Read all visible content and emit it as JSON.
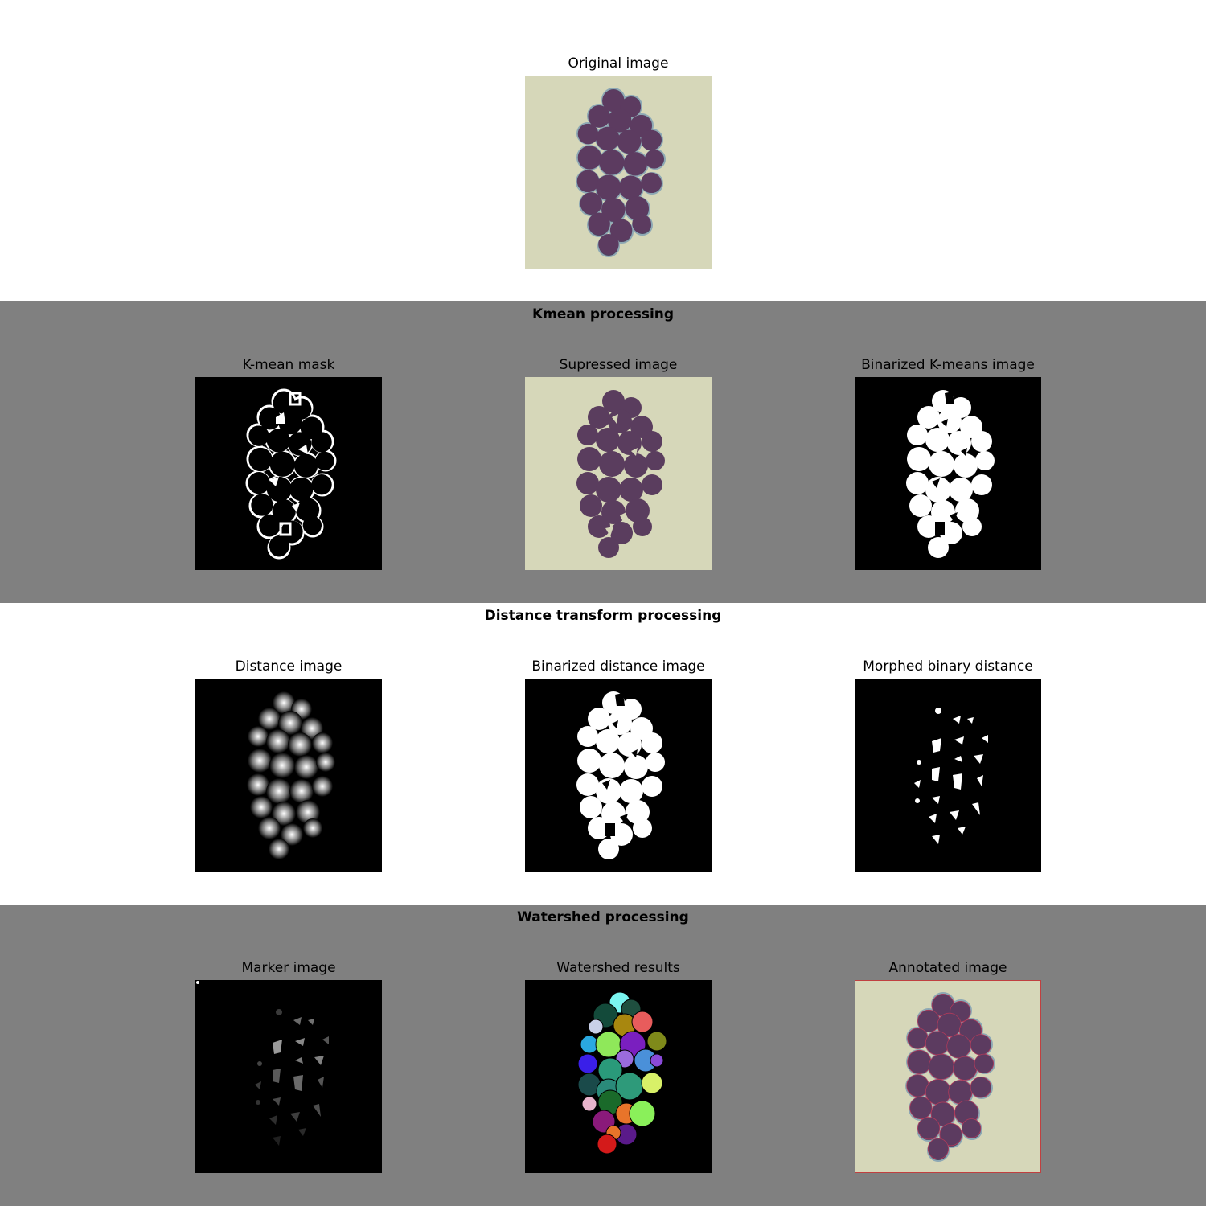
{
  "figure": {
    "original": {
      "title": "Original image",
      "icon": "cell-cluster-image"
    },
    "sections": [
      {
        "heading": "Kmean processing",
        "panels": [
          {
            "title": "K-mean mask",
            "icon": "binary-outline-mask-image"
          },
          {
            "title": "Supressed image",
            "icon": "flat-cell-cluster-image"
          },
          {
            "title": "Binarized K-means image",
            "icon": "binary-filled-mask-image"
          }
        ]
      },
      {
        "heading": "Distance transform processing",
        "panels": [
          {
            "title": "Distance image",
            "icon": "distance-map-image"
          },
          {
            "title": "Binarized distance image",
            "icon": "binary-filled-mask-image"
          },
          {
            "title": "Morphed binary distance",
            "icon": "binary-seed-image"
          }
        ]
      },
      {
        "heading": "Watershed processing",
        "panels": [
          {
            "title": "Marker image",
            "icon": "marker-label-image"
          },
          {
            "title": "Watershed results",
            "icon": "colored-segmentation-image"
          },
          {
            "title": "Annotated image",
            "icon": "annotated-cell-image"
          }
        ]
      }
    ],
    "colors": {
      "band_gray": "#808080",
      "background": "#d6d7b9",
      "cell": "#5a3d5e",
      "annotation_border": "#c04040"
    }
  }
}
